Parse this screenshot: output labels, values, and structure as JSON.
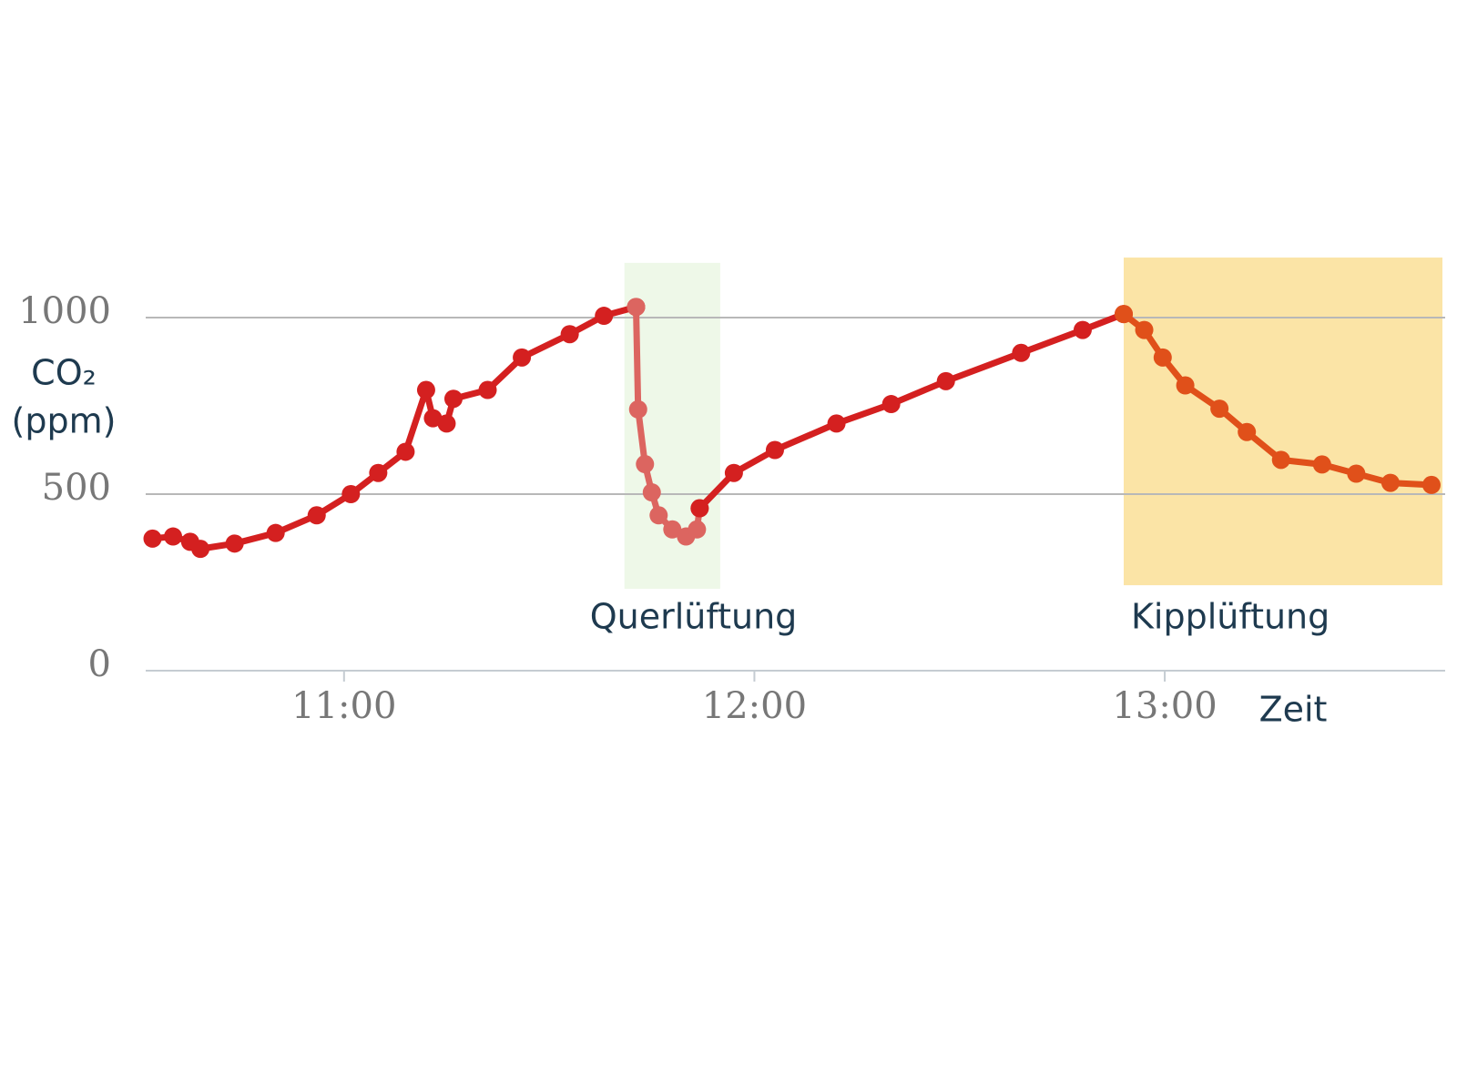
{
  "chart_data": {
    "type": "line",
    "y_label": [
      "CO₂",
      "(ppm)"
    ],
    "x_label": "Zeit",
    "xlim": [
      631,
      821
    ],
    "xticks": [
      {
        "value": 660,
        "label": "11:00"
      },
      {
        "value": 720,
        "label": "12:00"
      },
      {
        "value": 780,
        "label": "13:00"
      }
    ],
    "ylim": [
      0,
      1000
    ],
    "yticks": [
      0,
      500,
      1000
    ],
    "grid": true,
    "series": [
      {
        "color": "#d42020",
        "x": [
          632,
          635,
          637.5,
          639,
          644,
          650,
          656,
          661,
          665,
          669,
          672,
          673,
          675,
          676,
          681,
          686,
          693,
          698,
          702.7
        ],
        "values": [
          374,
          380,
          365,
          345,
          360,
          390,
          440,
          500,
          560,
          620,
          795,
          715,
          700,
          770,
          795,
          887,
          953,
          1005,
          1030
        ]
      },
      {
        "color": "#dc6560",
        "x": [
          702.7,
          703,
          704,
          705,
          706,
          708,
          710,
          711.6,
          712
        ],
        "values": [
          1030,
          740,
          585,
          505,
          440,
          400,
          380,
          400,
          460
        ]
      },
      {
        "color": "#d42020",
        "x": [
          712,
          717,
          723,
          732,
          740,
          748,
          759,
          768,
          774
        ],
        "values": [
          460,
          560,
          625,
          700,
          755,
          820,
          900,
          965,
          1010
        ]
      },
      {
        "color": "#e0501a",
        "x": [
          774,
          777,
          779.7,
          783,
          788,
          792,
          797,
          803,
          808,
          813,
          819
        ],
        "values": [
          1010,
          965,
          887,
          808,
          742,
          676,
          597,
          584,
          558,
          532,
          526
        ]
      }
    ],
    "annotations": [
      {
        "label": "Querlüftung",
        "x": [
          701,
          715
        ],
        "y": [
          232,
          1155
        ],
        "color": "#eef8e8"
      },
      {
        "label": "Kipplüftung",
        "x": [
          774,
          820.6
        ],
        "y": [
          242,
          1170
        ],
        "color": "#fbe4a6"
      }
    ]
  }
}
